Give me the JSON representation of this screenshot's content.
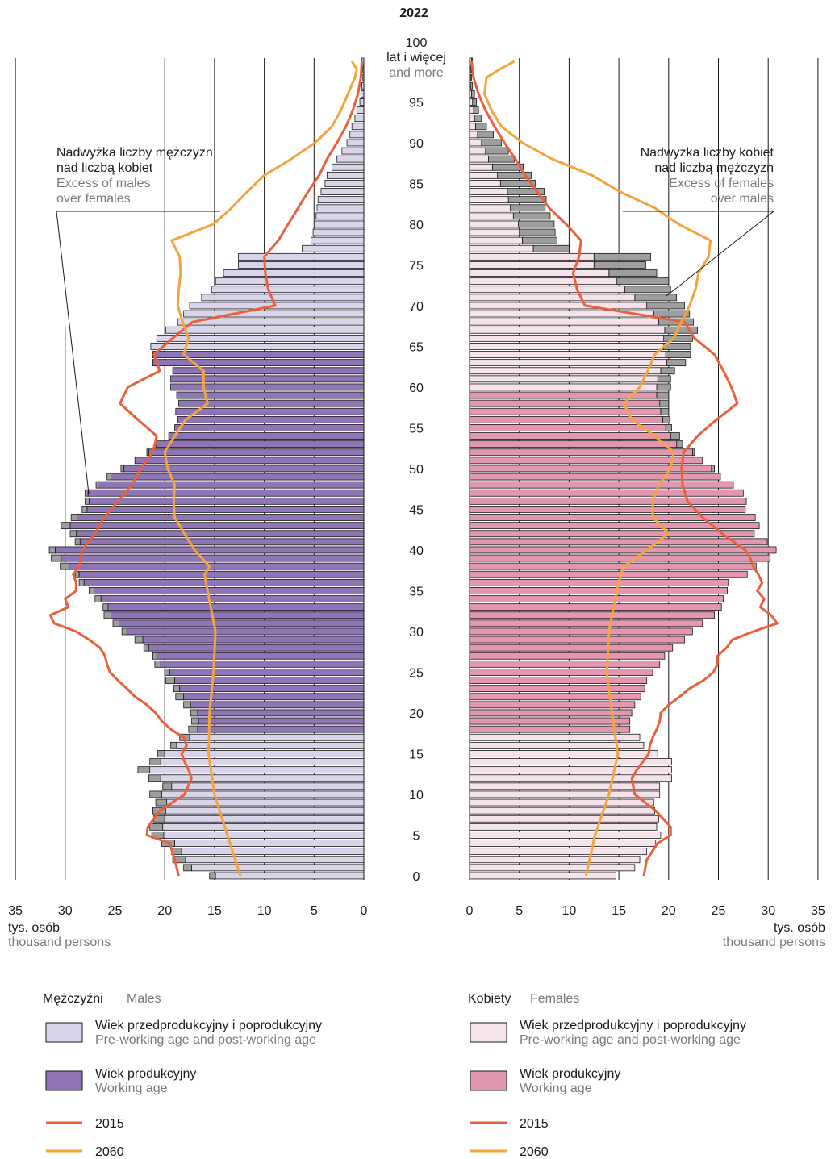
{
  "chart_data": {
    "type": "bar",
    "title": "2022",
    "age_top_label": "100",
    "age_top_label_pl": "lat i więcej",
    "age_top_label_en": "and more",
    "age_ticks": [
      0,
      5,
      10,
      15,
      20,
      25,
      30,
      35,
      40,
      45,
      50,
      55,
      60,
      65,
      70,
      75,
      80,
      85,
      90,
      95
    ],
    "x_ticks": [
      0,
      5,
      10,
      15,
      20,
      25,
      30,
      35
    ],
    "xlim": [
      0,
      35
    ],
    "xlabel_pl": "tys. osób",
    "xlabel_en": "thousand persons",
    "working_age_males": [
      18,
      64
    ],
    "working_age_females": [
      18,
      59
    ],
    "annotation_males_pl": [
      "Nadwyżka liczby mężczyzn",
      "nad liczbą kobiet"
    ],
    "annotation_males_en": [
      "Excess of males",
      "over females"
    ],
    "annotation_females_pl": [
      "Nadwyżka liczby kobiet",
      "nad liczbą mężczyzn"
    ],
    "annotation_females_en": [
      "Excess of females",
      "over males"
    ],
    "ages": [
      0,
      1,
      2,
      3,
      4,
      5,
      6,
      7,
      8,
      9,
      10,
      11,
      12,
      13,
      14,
      15,
      16,
      17,
      18,
      19,
      20,
      21,
      22,
      23,
      24,
      25,
      26,
      27,
      28,
      29,
      30,
      31,
      32,
      33,
      34,
      35,
      36,
      37,
      38,
      39,
      40,
      41,
      42,
      43,
      44,
      45,
      46,
      47,
      48,
      49,
      50,
      51,
      52,
      53,
      54,
      55,
      56,
      57,
      58,
      59,
      60,
      61,
      62,
      63,
      64,
      65,
      66,
      67,
      68,
      69,
      70,
      71,
      72,
      73,
      74,
      75,
      76,
      77,
      78,
      79,
      80,
      81,
      82,
      83,
      84,
      85,
      86,
      87,
      88,
      89,
      90,
      91,
      92,
      93,
      94,
      95,
      96,
      97,
      98,
      99,
      100
    ],
    "males_2022": [
      14.9,
      17.3,
      17.9,
      18.3,
      19.0,
      20.1,
      20.2,
      20.0,
      19.9,
      19.8,
      20.3,
      19.3,
      20.4,
      21.5,
      20.4,
      20.0,
      18.8,
      17.5,
      16.7,
      16.6,
      16.7,
      17.4,
      18.1,
      18.5,
      19.0,
      19.5,
      20.4,
      20.8,
      21.6,
      22.2,
      23.8,
      24.6,
      25.4,
      25.7,
      26.4,
      27.1,
      28.1,
      28.6,
      29.6,
      30.4,
      31.0,
      28.5,
      28.9,
      29.5,
      28.8,
      27.8,
      27.6,
      27.7,
      26.7,
      25.4,
      24.1,
      23.0,
      21.6,
      20.9,
      19.6,
      19.0,
      18.7,
      18.9,
      18.6,
      18.8,
      19.4,
      19.4,
      19.2,
      21.2,
      21.2,
      21.4,
      20.8,
      19.9,
      18.7,
      18.1,
      17.5,
      16.3,
      15.3,
      14.9,
      14.1,
      12.6,
      12.6,
      6.2,
      5.3,
      5.1,
      4.9,
      4.8,
      4.7,
      4.6,
      4.3,
      3.9,
      3.7,
      3.2,
      2.7,
      2.2,
      1.7,
      1.4,
      1.2,
      0.9,
      0.7,
      0.4,
      0.3,
      0.2,
      0.1,
      0.1,
      0.2
    ],
    "males_excess": [
      0.6,
      0.8,
      1.3,
      1.0,
      1.3,
      1.2,
      1.3,
      1.1,
      1.3,
      1.1,
      1.2,
      0.9,
      1.2,
      1.2,
      1.1,
      0.7,
      0.6,
      1.0,
      0.9,
      0.7,
      0.7,
      0.7,
      0.8,
      0.6,
      0.9,
      0.5,
      0.6,
      0.4,
      0.5,
      0.8,
      0.5,
      0.6,
      0.7,
      0.5,
      0.6,
      0.5,
      0.5,
      0.4,
      0.9,
      1.0,
      0.6,
      0.5,
      0.6,
      0.9,
      0.6,
      0.5,
      0.4,
      0.3,
      0.2,
      0.4,
      0.3,
      0.0,
      0.2,
      0.0,
      0.0,
      0.0,
      0.0,
      0.0,
      0.0,
      0.0,
      0.0,
      0.0,
      0.0,
      0.0,
      0.0,
      0.0,
      0.0,
      0.0,
      0.0,
      0.0,
      0.0,
      0.0,
      0.0,
      0.0,
      0.0,
      0.0,
      0.0,
      0.0,
      0.0,
      0.0,
      0.0,
      0.0,
      0.0,
      0.0,
      0.0,
      0.0,
      0.0,
      0.0,
      0.0,
      0.0,
      0.0,
      0.0,
      0.0,
      0.0,
      0.0,
      0.0,
      0.0,
      0.0,
      0.0,
      0.0,
      0.0
    ],
    "females_2022": [
      14.7,
      16.6,
      17.1,
      17.8,
      18.7,
      19.2,
      18.8,
      19.0,
      18.6,
      18.5,
      19.1,
      19.1,
      20.3,
      20.3,
      20.3,
      18.9,
      17.5,
      17.1,
      16.1,
      16.1,
      16.3,
      16.6,
      17.2,
      17.6,
      17.8,
      18.4,
      19.1,
      19.6,
      20.4,
      21.6,
      22.4,
      23.4,
      24.6,
      25.3,
      25.5,
      25.9,
      26.0,
      27.9,
      28.8,
      30.2,
      30.8,
      29.9,
      28.6,
      29.1,
      28.7,
      27.7,
      27.8,
      27.5,
      26.5,
      25.2,
      24.3,
      23.4,
      22.4,
      20.8,
      20.2,
      19.7,
      19.4,
      19.2,
      19.1,
      18.8,
      18.8,
      18.9,
      19.2,
      19.8,
      19.7,
      19.5,
      19.5,
      19.6,
      19.0,
      18.5,
      17.8,
      16.6,
      15.6,
      14.8,
      14.0,
      12.5,
      12.5,
      6.4,
      5.3,
      5.0,
      4.9,
      4.4,
      4.1,
      3.9,
      3.8,
      3.1,
      2.8,
      2.3,
      1.9,
      1.6,
      1.2,
      0.8,
      0.6,
      0.5,
      0.4,
      0.3,
      0.2,
      0.1,
      0.1,
      0.1,
      0.2
    ],
    "females_excess": [
      0.0,
      0.0,
      0.0,
      0.0,
      0.0,
      0.0,
      0.0,
      0.0,
      0.0,
      0.0,
      0.0,
      0.0,
      0.0,
      0.0,
      0.0,
      0.0,
      0.0,
      0.0,
      0.0,
      0.0,
      0.0,
      0.0,
      0.0,
      0.0,
      0.0,
      0.0,
      0.0,
      0.0,
      0.0,
      0.0,
      0.0,
      0.0,
      0.0,
      0.0,
      0.0,
      0.0,
      0.0,
      0.0,
      0.0,
      0.0,
      0.0,
      0.0,
      0.0,
      0.0,
      0.0,
      0.0,
      0.0,
      0.0,
      0.0,
      0.0,
      0.3,
      0.0,
      0.2,
      0.6,
      0.9,
      0.6,
      0.7,
      0.8,
      0.9,
      1.2,
      1.4,
      1.3,
      1.4,
      1.9,
      2.5,
      2.7,
      2.9,
      3.3,
      3.5,
      3.6,
      3.8,
      4.2,
      4.6,
      5.2,
      4.8,
      5.2,
      5.7,
      3.6,
      3.5,
      3.6,
      3.6,
      3.7,
      3.5,
      3.8,
      3.7,
      3.5,
      3.4,
      3.1,
      2.6,
      2.3,
      2.0,
      1.6,
      1.1,
      0.7,
      0.5,
      0.4,
      0.3,
      0.2,
      0.1,
      0.1,
      0.1
    ],
    "series": [
      {
        "name": "2015",
        "males_ages": [
          0,
          2,
          4,
          5,
          6,
          8,
          10,
          12,
          13,
          14,
          15,
          16,
          17,
          18,
          19,
          20,
          21,
          22,
          23,
          24,
          25,
          26,
          27,
          28,
          29,
          30,
          31,
          32,
          33,
          34,
          35,
          36,
          37,
          38,
          39,
          40,
          42,
          44,
          46,
          48,
          50,
          52,
          54,
          56,
          58,
          60,
          62,
          64,
          66,
          68,
          70,
          72,
          74,
          76,
          78,
          80,
          82,
          84,
          86,
          88,
          90,
          92,
          94,
          96,
          98,
          100
        ],
        "males_values": [
          18.6,
          19.0,
          19.5,
          21.8,
          21.7,
          20.5,
          18.0,
          17.3,
          17.6,
          18.0,
          18.3,
          17.8,
          18.1,
          19.4,
          20.3,
          20.9,
          21.8,
          23.0,
          23.8,
          24.7,
          25.5,
          25.8,
          26.0,
          26.5,
          27.6,
          28.9,
          31.1,
          31.5,
          29.7,
          30.0,
          28.9,
          28.9,
          29.2,
          28.6,
          28.4,
          28.3,
          27.0,
          26.1,
          24.7,
          23.3,
          22.4,
          21.2,
          20.8,
          22.7,
          24.5,
          23.7,
          20.5,
          21.1,
          19.2,
          17.2,
          8.9,
          9.6,
          9.9,
          10.0,
          8.6,
          7.6,
          6.6,
          5.6,
          4.5,
          3.7,
          2.7,
          1.8,
          1.1,
          0.6,
          0.3,
          0.2
        ],
        "females_ages": [
          0,
          2,
          4,
          5,
          6,
          8,
          10,
          12,
          13,
          14,
          15,
          16,
          17,
          18,
          19,
          20,
          21,
          22,
          23,
          24,
          25,
          26,
          27,
          28,
          29,
          30,
          31,
          32,
          33,
          34,
          35,
          36,
          37,
          38,
          39,
          40,
          42,
          44,
          46,
          48,
          50,
          52,
          54,
          56,
          58,
          60,
          62,
          64,
          66,
          68,
          70,
          72,
          74,
          76,
          78,
          80,
          82,
          84,
          86,
          88,
          90,
          92,
          94,
          96,
          98,
          100
        ],
        "females_values": [
          17.5,
          17.8,
          18.9,
          20.2,
          20.2,
          18.7,
          16.6,
          16.3,
          16.8,
          17.4,
          18.0,
          18.1,
          18.4,
          18.8,
          19.1,
          19.2,
          20.0,
          21.1,
          22.1,
          23.5,
          24.5,
          24.9,
          24.9,
          25.8,
          26.4,
          28.5,
          30.9,
          30.3,
          29.2,
          29.6,
          28.9,
          29.4,
          29.0,
          28.5,
          28.2,
          27.7,
          25.4,
          23.4,
          21.9,
          21.4,
          21.3,
          21.5,
          22.9,
          24.8,
          26.9,
          26.3,
          25.5,
          24.6,
          22.6,
          21.6,
          11.6,
          10.8,
          10.4,
          11.0,
          11.2,
          9.7,
          8.0,
          6.8,
          5.6,
          4.6,
          3.5,
          2.5,
          1.6,
          0.9,
          0.4,
          0.2
        ]
      },
      {
        "name": "2060",
        "males_ages": [
          0,
          5,
          10,
          15,
          20,
          25,
          30,
          35,
          37,
          38,
          40,
          42,
          44,
          46,
          48,
          50,
          52,
          54,
          56,
          58,
          60,
          62,
          64,
          66,
          68,
          70,
          72,
          74,
          76,
          78,
          80,
          82,
          84,
          86,
          88,
          90,
          92,
          94,
          96,
          98,
          99,
          100
        ],
        "males_values": [
          12.4,
          13.7,
          15.0,
          15.6,
          15.5,
          15.1,
          14.9,
          15.7,
          16.0,
          15.5,
          17.0,
          18.0,
          19.0,
          19.1,
          19.0,
          19.7,
          20.0,
          19.0,
          17.9,
          15.7,
          16.1,
          16.1,
          18.1,
          17.6,
          18.2,
          18.7,
          18.6,
          18.4,
          18.5,
          19.3,
          15.1,
          13.3,
          11.7,
          10.0,
          7.3,
          4.9,
          3.2,
          2.3,
          1.6,
          0.9,
          0.7,
          1.2
        ],
        "females_ages": [
          0,
          5,
          10,
          15,
          20,
          25,
          30,
          35,
          37,
          38,
          40,
          42,
          44,
          46,
          48,
          50,
          52,
          54,
          56,
          58,
          60,
          62,
          64,
          66,
          68,
          70,
          72,
          74,
          76,
          78,
          80,
          82,
          84,
          86,
          88,
          90,
          92,
          94,
          96,
          98,
          99,
          100
        ],
        "females_values": [
          11.7,
          12.6,
          14.0,
          14.9,
          14.3,
          13.8,
          14.0,
          14.8,
          15.2,
          15.5,
          17.8,
          20.0,
          18.4,
          18.4,
          19.0,
          20.2,
          20.5,
          18.6,
          16.3,
          15.5,
          17.1,
          17.9,
          18.6,
          20.5,
          21.3,
          22.1,
          22.7,
          23.0,
          24.0,
          24.2,
          21.0,
          18.6,
          15.1,
          12.3,
          8.3,
          5.3,
          3.2,
          2.2,
          1.5,
          1.7,
          3.0,
          4.5
        ]
      }
    ]
  },
  "legend": {
    "males_title": "Mężczyźni",
    "males_title_en": "Males",
    "females_title": "Kobiety",
    "females_title_en": "Females",
    "non_working_pl": "Wiek przedprodukcyjny i poprodukcyjny",
    "non_working_en": "Pre-working age and post-working age",
    "working_pl": "Wiek produkcyjny",
    "working_en": "Working age",
    "line_2015": "2015",
    "line_2060": "2060"
  },
  "colors": {
    "male_nonworking": "#d9d4ea",
    "male_working": "#8f74b6",
    "female_nonworking": "#f6e2ea",
    "female_working": "#e297b1",
    "excess": "#9e9e9e",
    "line_2015": "#e8603c",
    "line_2060": "#f3a43d",
    "grid": "#1a1a1a"
  }
}
